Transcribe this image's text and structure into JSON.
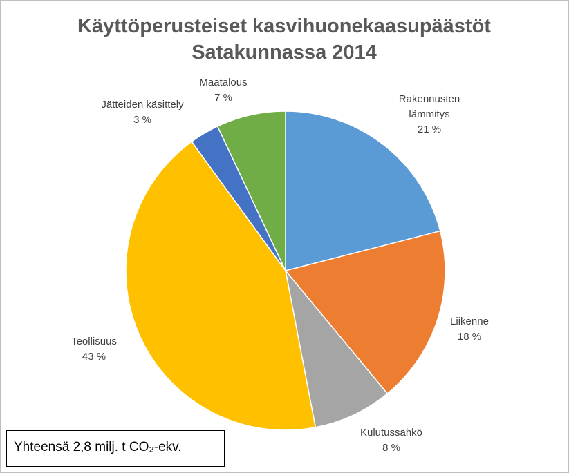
{
  "chart_data": {
    "type": "pie",
    "title": "Käyttöperusteiset kasvihuonekaasupäästöt Satakunnassa 2014",
    "categories": [
      "Rakennusten lämmitys",
      "Liikenne",
      "Kulutussähkö",
      "Teollisuus",
      "Jätteiden käsittely",
      "Maatalous"
    ],
    "values": [
      21,
      18,
      8,
      43,
      3,
      7
    ],
    "value_labels": [
      "21 %",
      "18 %",
      "8 %",
      "43 %",
      "3 %",
      "7 %"
    ],
    "colors": [
      "#5b9bd5",
      "#ed7d31",
      "#a5a5a5",
      "#ffc000",
      "#4472c4",
      "#70ad47"
    ],
    "annotation": "Yhteensä 2,8 milj. t CO₂-ekv."
  }
}
